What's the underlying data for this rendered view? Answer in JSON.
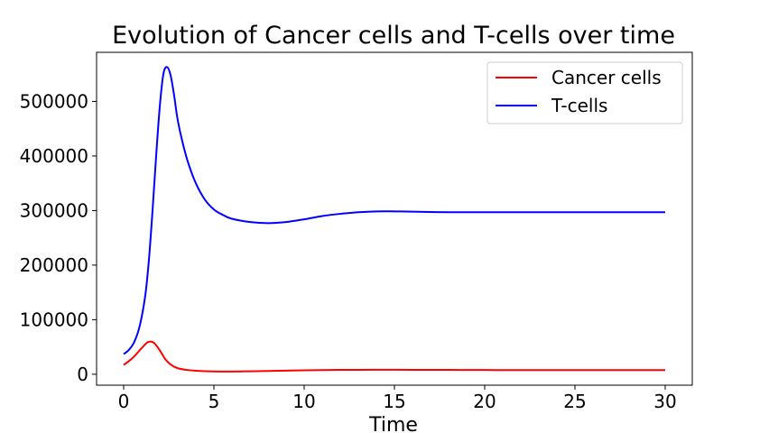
{
  "chart_data": {
    "type": "line",
    "title": "Evolution of Cancer cells and T-cells over time",
    "xlabel": "Time",
    "ylabel": "",
    "xlim": [
      -1.5,
      31.5
    ],
    "ylim": [
      -20000,
      590000
    ],
    "xticks": [
      0,
      5,
      10,
      15,
      20,
      25,
      30
    ],
    "yticks": [
      0,
      100000,
      200000,
      300000,
      400000,
      500000
    ],
    "grid": false,
    "legend_position": "top-right",
    "series": [
      {
        "name": "Cancer cells",
        "color": "#ff0000",
        "x": [
          0,
          0.5,
          1.0,
          1.3,
          1.5,
          1.7,
          2.0,
          2.3,
          2.6,
          3.0,
          3.5,
          4.0,
          5.0,
          6.0,
          7.0,
          8.0,
          10.0,
          12.0,
          14.0,
          16.0,
          18.0,
          20.0,
          22.0,
          25.0,
          28.0,
          30.0
        ],
        "y": [
          17000,
          30000,
          48000,
          58000,
          60000,
          57000,
          44000,
          28000,
          18000,
          11000,
          8000,
          6500,
          5200,
          5000,
          5500,
          6000,
          7200,
          8000,
          8300,
          8200,
          8000,
          7800,
          7700,
          7700,
          7700,
          7700
        ]
      },
      {
        "name": "T-cells",
        "color": "#0000ff",
        "x": [
          0,
          0.3,
          0.6,
          0.9,
          1.2,
          1.4,
          1.6,
          1.8,
          2.0,
          2.2,
          2.4,
          2.6,
          2.8,
          3.0,
          3.3,
          3.6,
          4.0,
          4.5,
          5.0,
          5.5,
          6.0,
          7.0,
          8.0,
          9.0,
          10.0,
          11.0,
          12.0,
          13.0,
          14.0,
          15.0,
          16.0,
          18.0,
          20.0,
          22.0,
          25.0,
          28.0,
          30.0
        ],
        "y": [
          37000,
          45000,
          60000,
          90000,
          145000,
          210000,
          300000,
          400000,
          490000,
          550000,
          563000,
          548000,
          510000,
          465000,
          420000,
          385000,
          350000,
          320000,
          302000,
          292000,
          285000,
          279000,
          277000,
          279000,
          284000,
          290000,
          294000,
          297000,
          298500,
          298500,
          298000,
          297000,
          297000,
          297000,
          297000,
          297000,
          297000
        ]
      }
    ]
  }
}
